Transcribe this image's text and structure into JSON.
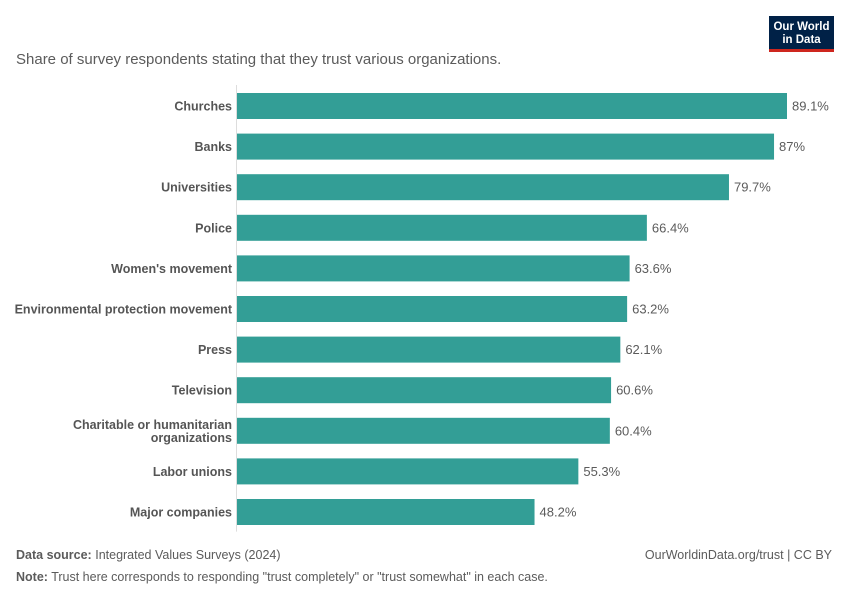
{
  "header": {
    "subtitle": "Share of survey respondents stating that they trust various organizations."
  },
  "logo": {
    "line1": "Our World",
    "line2": "in Data"
  },
  "chart_data": {
    "type": "bar",
    "orientation": "horizontal",
    "categories": [
      [
        "Churches"
      ],
      [
        "Banks"
      ],
      [
        "Universities"
      ],
      [
        "Police"
      ],
      [
        "Women's movement"
      ],
      [
        "Environmental protection movement"
      ],
      [
        "Press"
      ],
      [
        "Television"
      ],
      [
        "Charitable or humanitarian",
        "organizations"
      ],
      [
        "Labor unions"
      ],
      [
        "Major companies"
      ]
    ],
    "values": [
      89.1,
      87,
      79.7,
      66.4,
      63.6,
      63.2,
      62.1,
      60.6,
      60.4,
      55.3,
      48.2
    ],
    "value_labels": [
      "89.1%",
      "87%",
      "79.7%",
      "66.4%",
      "63.6%",
      "63.2%",
      "62.1%",
      "60.6%",
      "60.4%",
      "55.3%",
      "48.2%"
    ],
    "xlim": [
      0,
      89.1
    ],
    "bar_color": "#339e96",
    "grid": false
  },
  "footer": {
    "source_label": "Data source:",
    "source_text": "Integrated Values Surveys (2024)",
    "note_label": "Note:",
    "note_text": "Trust here corresponds to responding \"trust completely\" or \"trust somewhat\" in each case.",
    "credit": "OurWorldinData.org/trust | CC BY"
  }
}
